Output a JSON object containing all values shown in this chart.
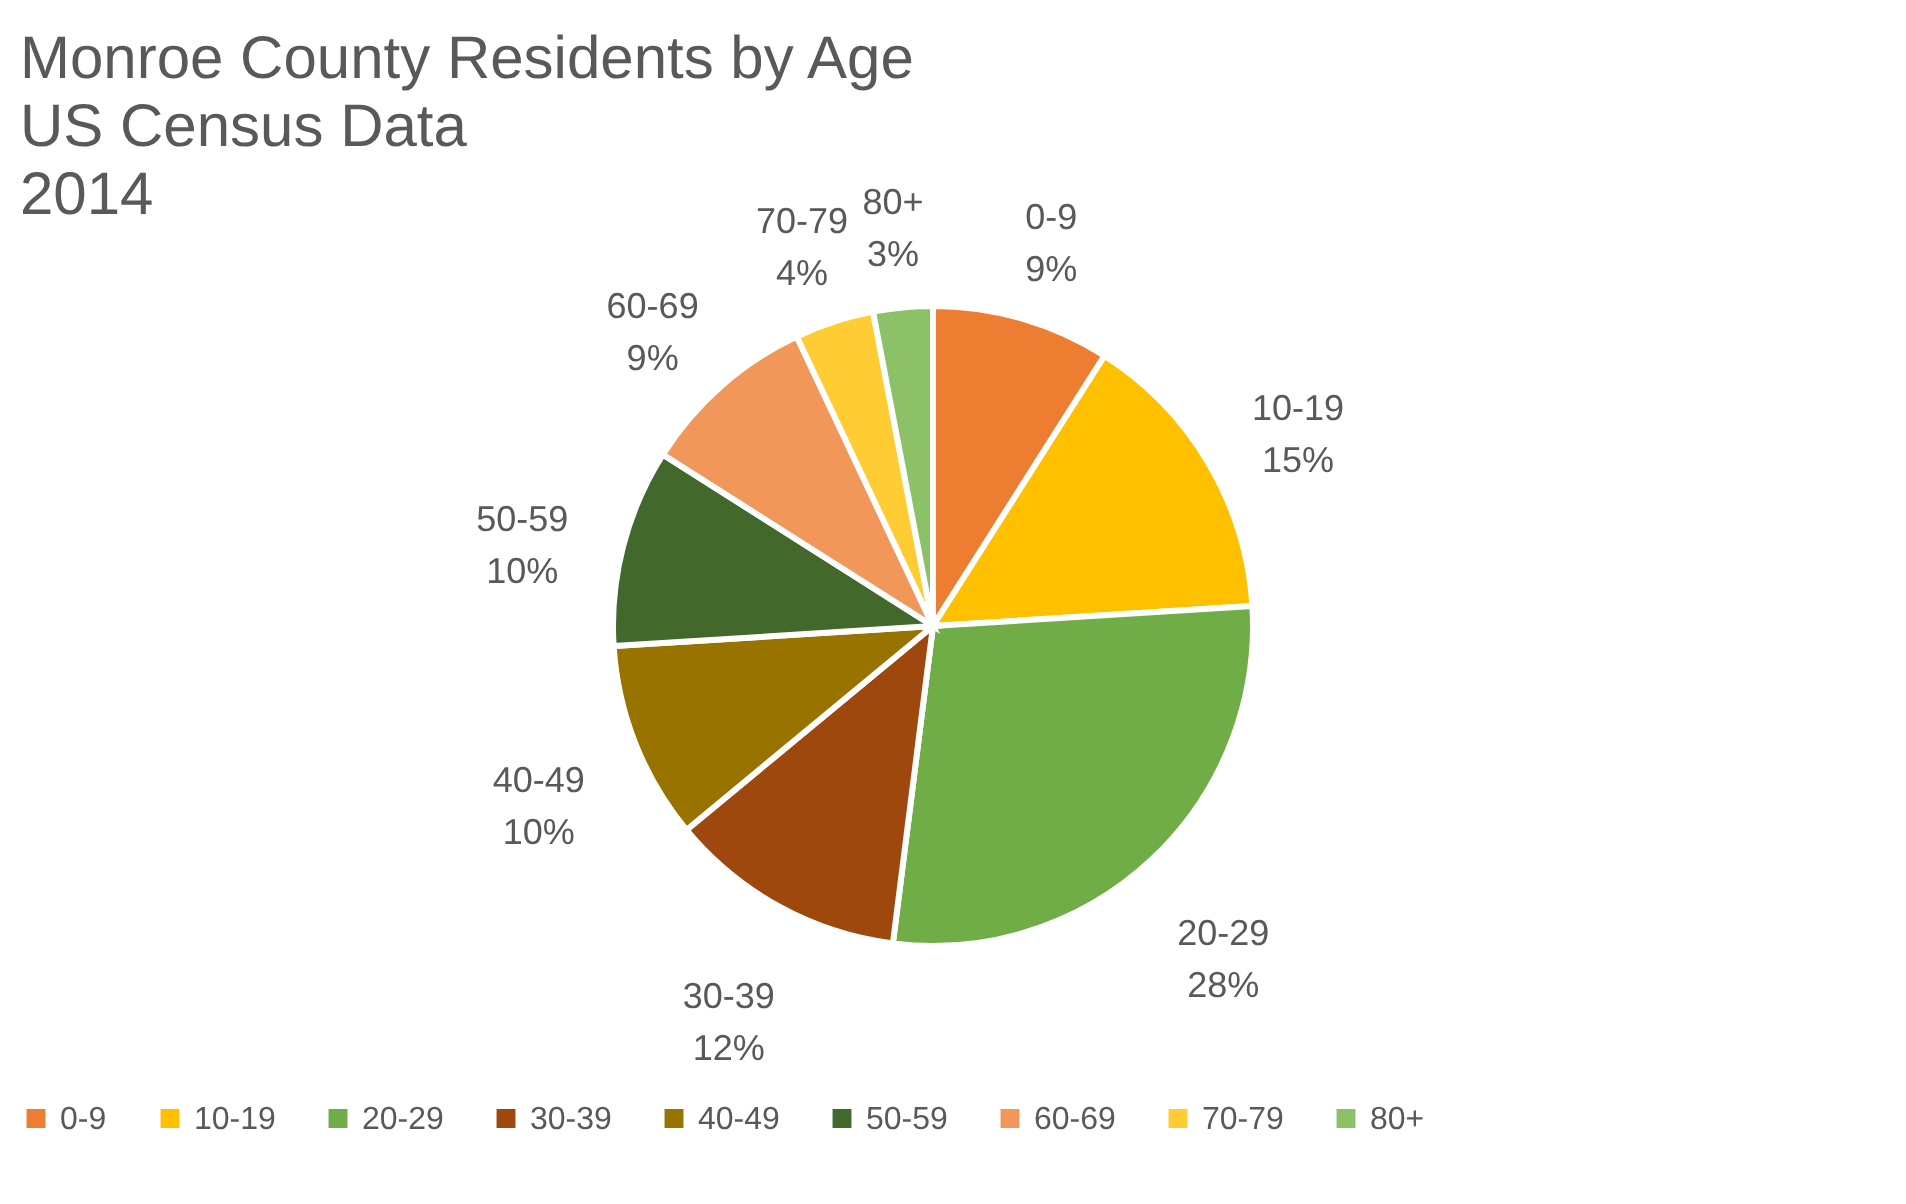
{
  "chart_data": {
    "type": "pie",
    "title": "Monroe County Residents by Age\nUS Census Data\n2014",
    "categories": [
      "0-9",
      "10-19",
      "20-29",
      "30-39",
      "40-49",
      "50-59",
      "60-69",
      "70-79",
      "80+"
    ],
    "values": [
      9,
      15,
      28,
      12,
      10,
      10,
      9,
      4,
      3
    ],
    "value_labels": [
      "9%",
      "15%",
      "28%",
      "12%",
      "10%",
      "10%",
      "9%",
      "4%",
      "3%"
    ],
    "colors": [
      "#ed7d31",
      "#ffc000",
      "#70ad47",
      "#9e480e",
      "#997300",
      "#43682b",
      "#f1975a",
      "#ffcd33",
      "#8cc168"
    ],
    "legend": "bottom"
  }
}
